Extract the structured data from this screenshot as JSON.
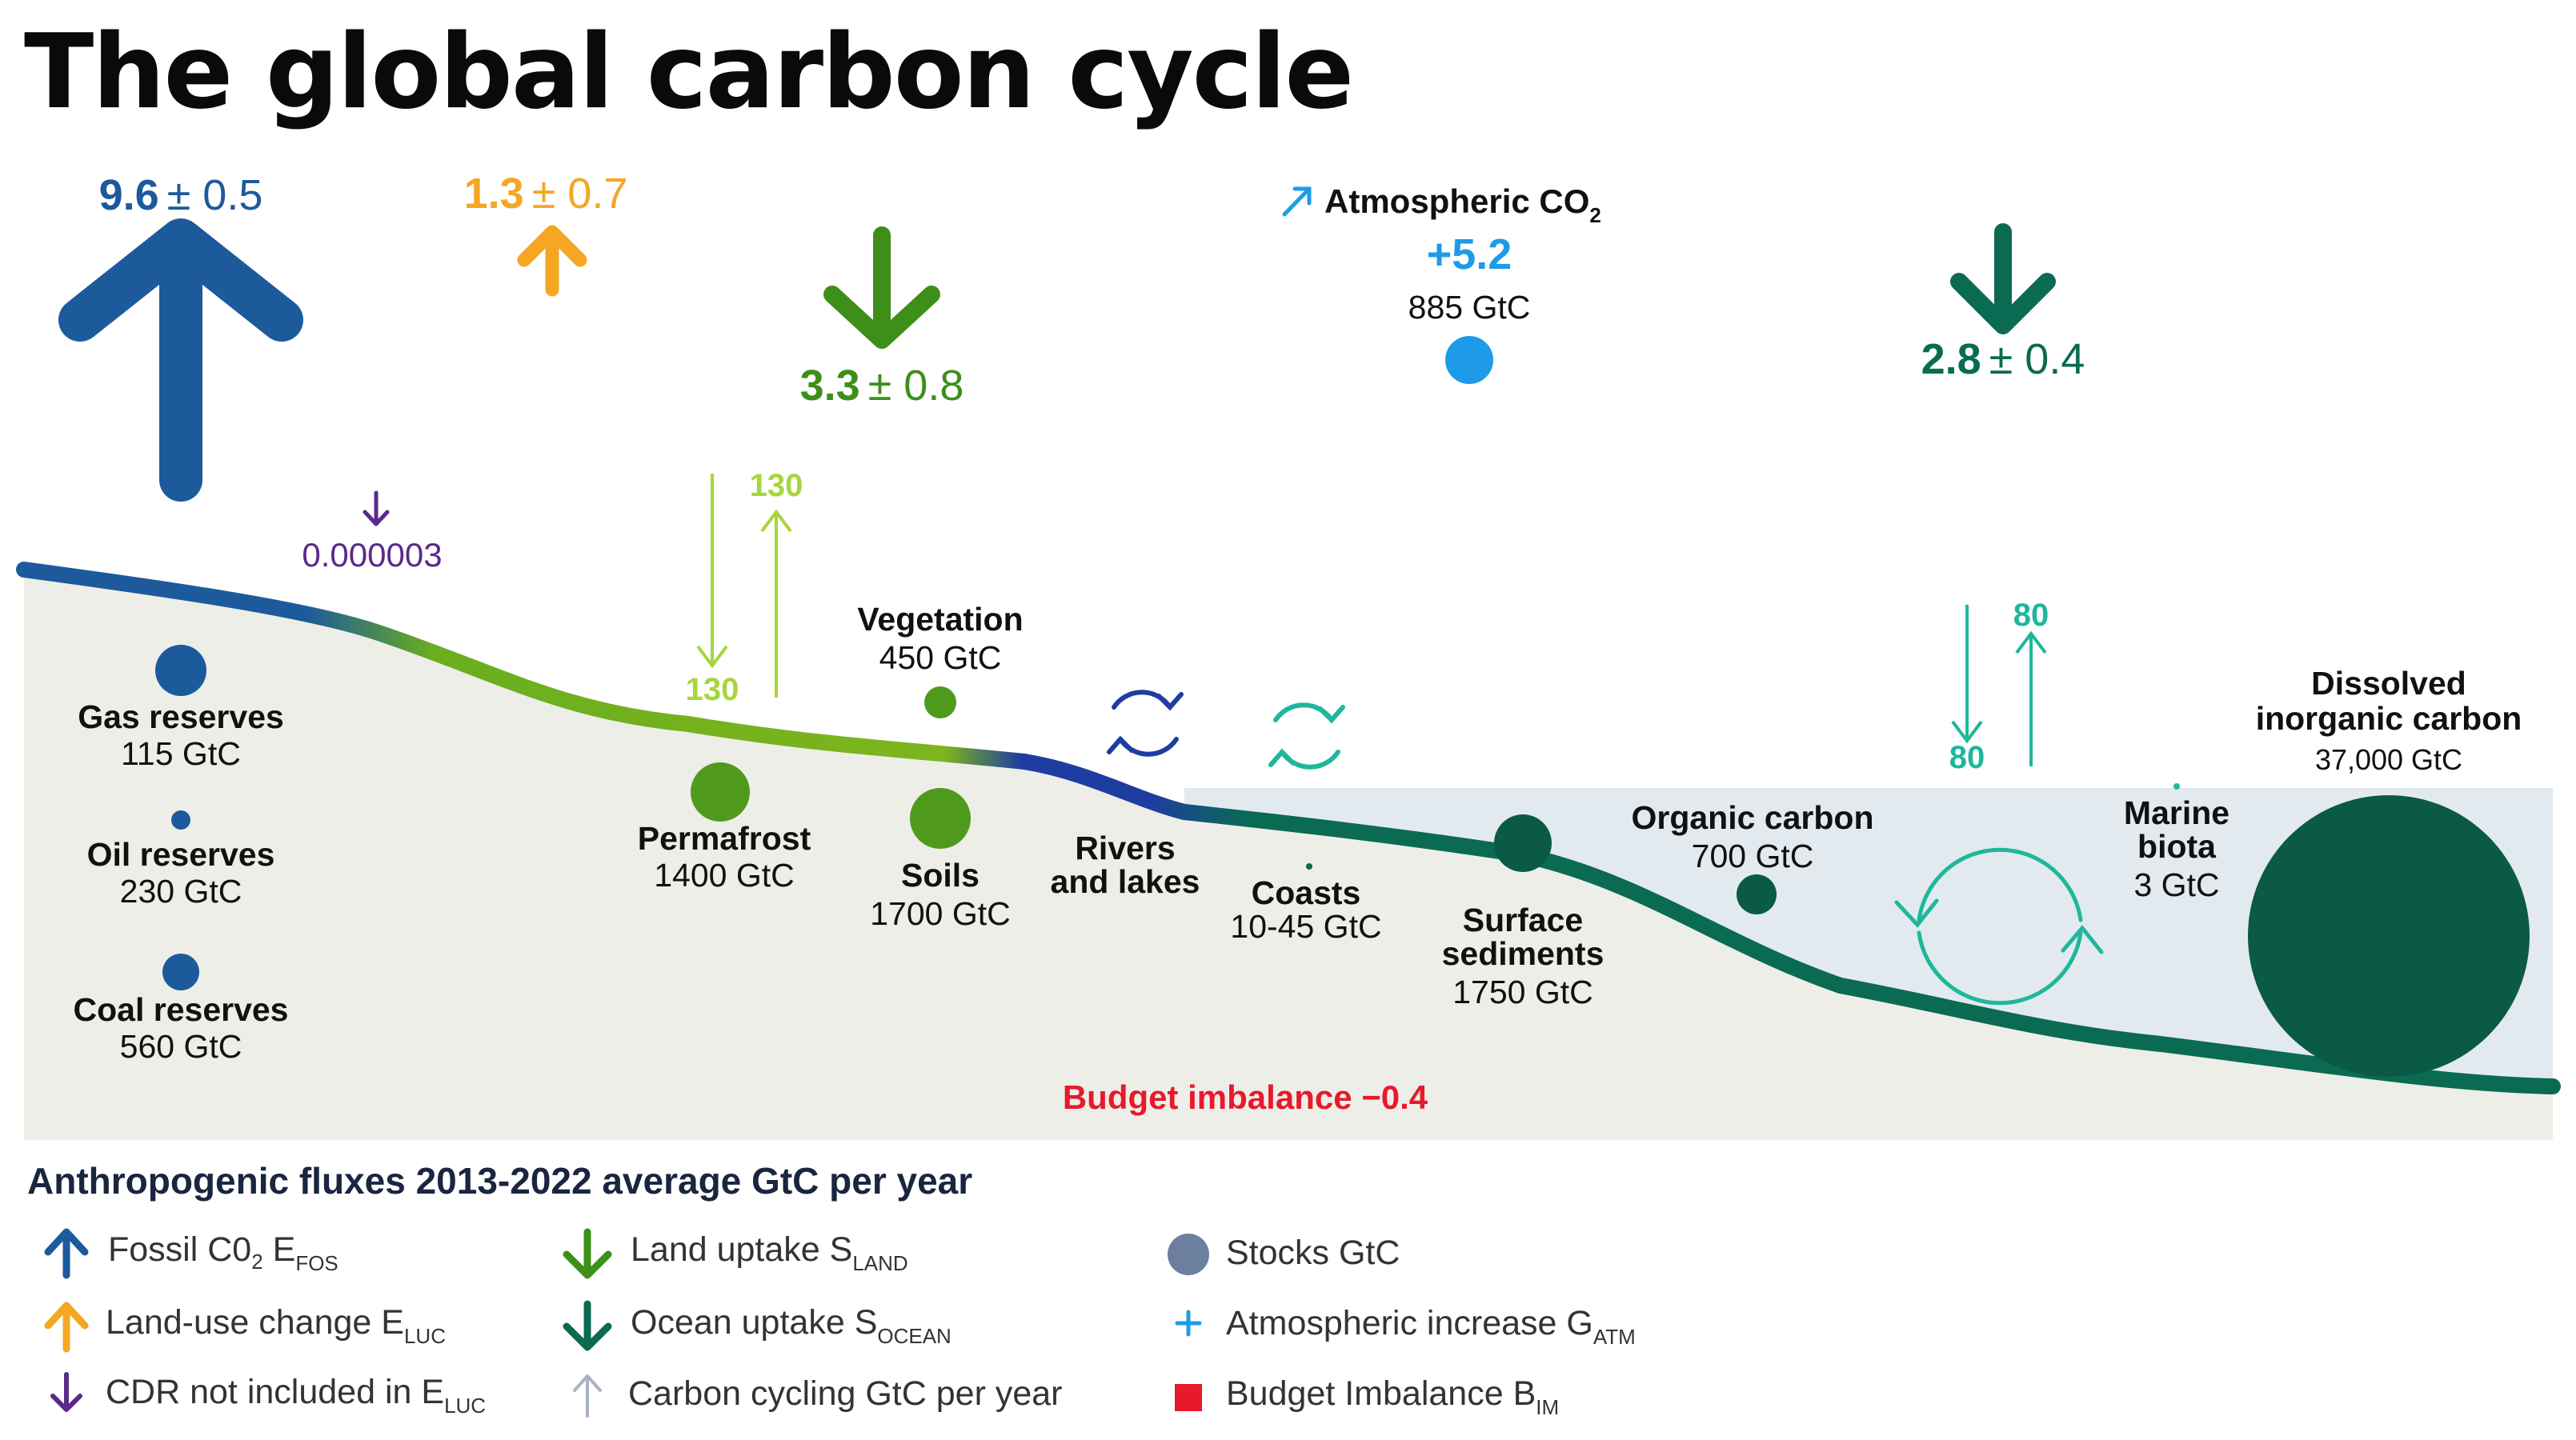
{
  "title": "The global carbon cycle",
  "colors": {
    "fossil": "#1d5a9c",
    "land_use": "#f5a623",
    "land_uptake": "#3d8f1a",
    "ocean_uptake": "#0a6b52",
    "atmospheric": "#1e9be8",
    "cdr": "#5a2a8a",
    "land_cycle": "#a6d63a",
    "ocean_cycle": "#1fb79b",
    "imbalance": "#e8192c",
    "ground": "#eeeee8",
    "ocean": "#e2eaf0"
  },
  "fluxes": {
    "fossil": {
      "value": "9.6",
      "unc": "± 0.5"
    },
    "land_use": {
      "value": "1.3",
      "unc": "± 0.7"
    },
    "land_uptake": {
      "value": "3.3",
      "unc": "± 0.8"
    },
    "ocean_uptake": {
      "value": "2.8",
      "unc": "± 0.4"
    },
    "cdr": {
      "value": "0.000003"
    },
    "atmospheric": {
      "label": "Atmospheric CO",
      "sub": "2",
      "value": "+5.2",
      "stock": "885 GtC"
    }
  },
  "cycling": {
    "land_down": "130",
    "land_up": "130",
    "ocean_down": "80",
    "ocean_up": "80"
  },
  "stocks": {
    "gas": {
      "name": "Gas reserves",
      "value": "115 GtC"
    },
    "oil": {
      "name": "Oil reserves",
      "value": "230 GtC"
    },
    "coal": {
      "name": "Coal reserves",
      "value": "560 GtC"
    },
    "permafrost": {
      "name": "Permafrost",
      "value": "1400 GtC"
    },
    "vegetation": {
      "name": "Vegetation",
      "value": "450 GtC"
    },
    "soils": {
      "name": "Soils",
      "value": "1700 GtC"
    },
    "rivers": {
      "name1": "Rivers",
      "name2": "and lakes"
    },
    "coasts": {
      "name": "Coasts",
      "value": "10-45 GtC"
    },
    "sediments": {
      "name1": "Surface",
      "name2": "sediments",
      "value": "1750 GtC"
    },
    "organic": {
      "name": "Organic carbon",
      "value": "700 GtC"
    },
    "marine": {
      "name1": "Marine",
      "name2": "biota",
      "value": "3 GtC"
    },
    "dissolved": {
      "name1": "Dissolved",
      "name2": "inorganic carbon",
      "value": "37,000 GtC"
    }
  },
  "budget_imbalance": "Budget imbalance −0.4",
  "legend": {
    "heading": "Anthropogenic fluxes 2013-2022 average GtC per year",
    "fossil": {
      "text": "Fossil C0",
      "sub1": "2",
      "mid": " E",
      "sub2": "FOS"
    },
    "land_use": {
      "text": "Land-use change E",
      "sub": "LUC"
    },
    "cdr": {
      "text": "CDR not included in E",
      "sub": "LUC"
    },
    "land_uptake": {
      "text": "Land uptake S",
      "sub": "LAND"
    },
    "ocean_uptake": {
      "text": "Ocean uptake S",
      "sub": "OCEAN"
    },
    "cycling": {
      "text": "Carbon cycling GtC per year"
    },
    "stocks": {
      "text": "Stocks GtC"
    },
    "atm_increase": {
      "text": "Atmospheric increase G",
      "sub": "ATM"
    },
    "imbalance": {
      "text": "Budget Imbalance B",
      "sub": "IM"
    }
  }
}
